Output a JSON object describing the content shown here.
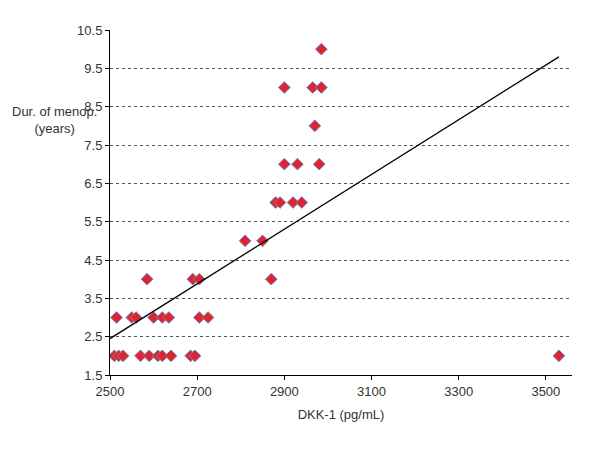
{
  "chart_data": {
    "type": "scatter",
    "x_label": "DKK-1 (pg/mL)",
    "y_label": [
      "Dur. of menop.",
      "(years)"
    ],
    "xlim": [
      2500,
      3560
    ],
    "xticks": [
      2500,
      2700,
      2900,
      3100,
      3300,
      3500
    ],
    "ylim": [
      1.5,
      10.5
    ],
    "yticks": [
      1.5,
      2.5,
      3.5,
      4.5,
      5.5,
      6.5,
      7.5,
      8.5,
      9.5,
      10.5
    ],
    "grid": true,
    "series": [
      {
        "type": "scatter",
        "marker": "diamond",
        "color": "#e0242c",
        "x": [
          2510,
          2520,
          2530,
          2515,
          2550,
          2560,
          2570,
          2585,
          2590,
          2600,
          2610,
          2620,
          2620,
          2635,
          2640,
          2685,
          2690,
          2695,
          2705,
          2705,
          2725,
          2810,
          2850,
          2870,
          2880,
          2890,
          2900,
          2900,
          2920,
          2930,
          2940,
          2965,
          2970,
          2980,
          2985,
          2985,
          3530
        ],
        "values": [
          2,
          2,
          2,
          3,
          3,
          3,
          2,
          4,
          2,
          3,
          2,
          2,
          3,
          3,
          2,
          2,
          4,
          2,
          3,
          4,
          3,
          5,
          5,
          4,
          6,
          6,
          9,
          7,
          6,
          7,
          6,
          9,
          8,
          7,
          9,
          10,
          2
        ]
      },
      {
        "type": "line",
        "line_style": "solid",
        "color": "#000000",
        "x": [
          2500,
          3530
        ],
        "values": [
          2.45,
          9.8
        ]
      }
    ]
  }
}
